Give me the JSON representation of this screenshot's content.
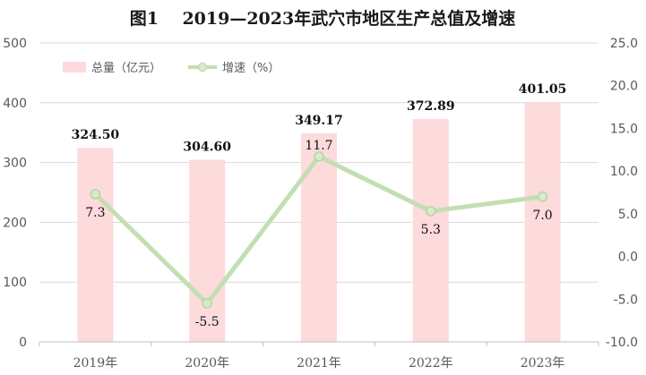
{
  "chart_data": {
    "type": "bar",
    "title": "图1    2019—2023年武穴市地区生产总值及增速",
    "categories": [
      "2019年",
      "2020年",
      "2021年",
      "2022年",
      "2023年"
    ],
    "series": [
      {
        "name": "总量（亿元）",
        "type": "bar",
        "axis": "left",
        "color": "#fddadc",
        "values": [
          324.5,
          304.6,
          349.17,
          372.89,
          401.05
        ],
        "labels": [
          "324.50",
          "304.60",
          "349.17",
          "372.89",
          "401.05"
        ]
      },
      {
        "name": "增速（%）",
        "type": "line",
        "axis": "right",
        "color": "#c3dfb2",
        "values": [
          7.3,
          -5.5,
          11.7,
          5.3,
          7.0
        ],
        "labels": [
          "7.3",
          "-5.5",
          "11.7",
          "5.3",
          "7.0"
        ]
      }
    ],
    "y_left": {
      "range": [
        0,
        500
      ],
      "ticks": [
        "0",
        "100",
        "200",
        "300",
        "400",
        "500"
      ]
    },
    "y_right": {
      "range": [
        -10,
        25
      ],
      "ticks": [
        "-10.0",
        "-5.0",
        "0.0",
        "5.0",
        "10.0",
        "15.0",
        "20.0",
        "25.0"
      ]
    },
    "grid": true,
    "legend_position": "top-left"
  }
}
